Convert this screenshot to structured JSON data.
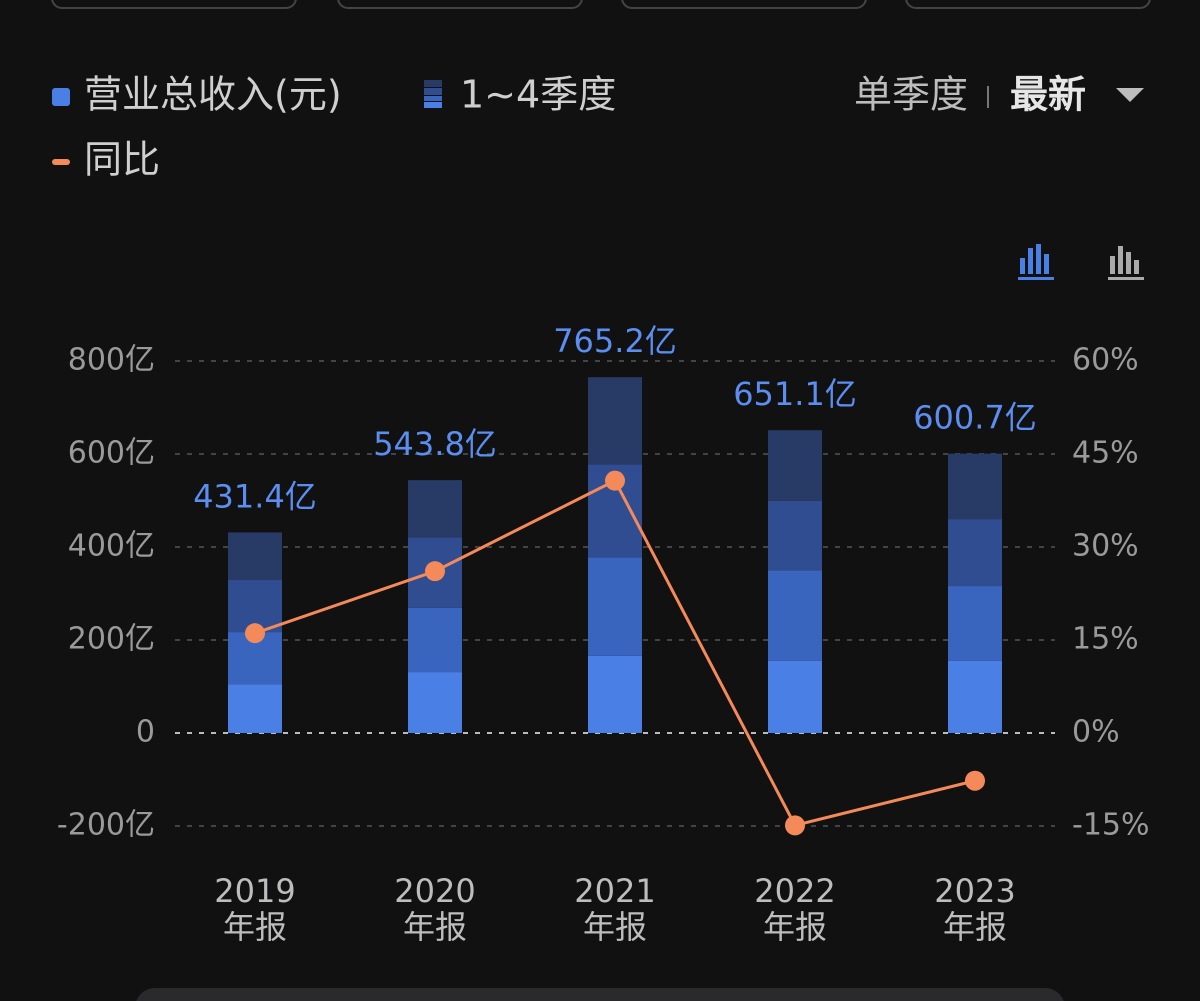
{
  "chart_data": {
    "type": "bar",
    "legend_labels": [
      "营业总收入(元)",
      "1~4季度"
    ],
    "mode_label": "单季度",
    "period_label": "最新",
    "categories": [
      "2019年报",
      "2020年报",
      "2021年报",
      "2022年报",
      "2023年报"
    ],
    "series": [
      {
        "color": "#4a7fe6",
        "values": [
          105,
          131,
          166,
          155,
          155
        ]
      },
      {
        "color": "#3a65be",
        "values": [
          112,
          138,
          212,
          195,
          161
        ]
      },
      {
        "color": "#2f4d90",
        "values": [
          112,
          152,
          200,
          149,
          144
        ]
      },
      {
        "color": "#283a66",
        "values": [
          102.4,
          122.8,
          187.2,
          152.1,
          140.7
        ]
      },
      {
        "name": "同比",
        "type": "line",
        "axis": "y2",
        "color": "#f4895a",
        "values": [
          16.1,
          26.1,
          40.7,
          -14.9,
          -7.7
        ]
      }
    ],
    "totals": [
      431.4,
      543.8,
      765.2,
      651.1,
      600.7
    ],
    "total_labels": [
      "431.4亿",
      "543.8亿",
      "765.2亿",
      "651.1亿",
      "600.7亿"
    ],
    "ylim": [
      -200,
      800
    ],
    "yticks": [
      {
        "value": -200,
        "label": "-200亿"
      },
      0,
      {
        "value": 200,
        "label": "200亿"
      },
      {
        "value": 400,
        "label": "400亿"
      },
      {
        "value": 600,
        "label": "600亿"
      },
      {
        "value": 800,
        "label": "800亿"
      }
    ],
    "y2lim": [
      -15,
      60
    ],
    "y2ticks": [
      {
        "value": -15,
        "label": "-15%"
      },
      {
        "value": 0,
        "label": "0%"
      },
      {
        "value": 15,
        "label": "15%"
      },
      {
        "value": 30,
        "label": "30%"
      },
      {
        "value": 45,
        "label": "45%"
      },
      {
        "value": 60,
        "label": "60%"
      }
    ],
    "grid": true
  }
}
